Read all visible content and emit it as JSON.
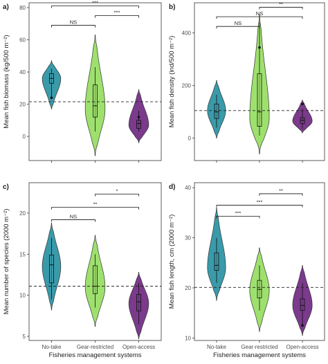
{
  "colors": {
    "no_take": "#3a9aaa",
    "gear_restricted": "#9ee06d",
    "open_access": "#7b3a8c",
    "outline": "#333333",
    "frame": "#333333",
    "reference_line": "#222222"
  },
  "chart_data": [
    {
      "id": "a",
      "type": "violin",
      "panel_label": "a)",
      "xlabel": "",
      "ylabel": "Mean fish biomass (kg/500 m⁻²)",
      "categories": [
        "No-take",
        "Gear-restricted",
        "Open-access"
      ],
      "show_xtick_labels": false,
      "ylim": [
        -15,
        83
      ],
      "yticks": [
        0,
        20,
        40,
        60,
        80
      ],
      "reference_line": 21.5,
      "grid": false,
      "series": [
        {
          "category": "No-take",
          "violin_range": [
            17,
            47
          ],
          "violin_peak": 36,
          "box": [
            33,
            36,
            39
          ],
          "whiskers": [
            24,
            42
          ],
          "outliers": [
            24
          ]
        },
        {
          "category": "Gear-restricted",
          "violin_range": [
            -12,
            63
          ],
          "violin_peak": 17,
          "box": [
            12,
            19,
            32
          ],
          "whiskers": [
            3,
            43
          ],
          "outliers": []
        },
        {
          "category": "Open-access",
          "violin_range": [
            -4,
            29
          ],
          "violin_peak": 7,
          "box": [
            5,
            8,
            10
          ],
          "whiskers": [
            3,
            16
          ],
          "outliers": [
            12
          ]
        }
      ],
      "comparisons": [
        {
          "pair": [
            "No-take",
            "Gear-restricted"
          ],
          "label": "NS",
          "y": 69
        },
        {
          "pair": [
            "Gear-restricted",
            "Open-access"
          ],
          "label": "***",
          "y": 75
        },
        {
          "pair": [
            "No-take",
            "Open-access"
          ],
          "label": "***",
          "y": 81
        }
      ]
    },
    {
      "id": "b",
      "type": "violin",
      "panel_label": "b)",
      "xlabel": "",
      "ylabel": "Mean fish density (ind/500 m⁻²)",
      "categories": [
        "No-take",
        "Gear-restricted",
        "Open-access"
      ],
      "show_xtick_labels": false,
      "ylim": [
        -85,
        515
      ],
      "yticks": [
        0,
        200,
        400
      ],
      "reference_line": 105,
      "grid": false,
      "series": [
        {
          "category": "No-take",
          "violin_range": [
            0,
            220
          ],
          "violin_peak": 105,
          "box": [
            75,
            100,
            130
          ],
          "whiskers": [
            40,
            165
          ],
          "outliers": []
        },
        {
          "category": "Gear-restricted",
          "violin_range": [
            -60,
            470
          ],
          "violin_peak": 75,
          "box": [
            45,
            100,
            245
          ],
          "whiskers": [
            10,
            440
          ],
          "outliers": [
            345
          ]
        },
        {
          "category": "Open-access",
          "violin_range": [
            20,
            145
          ],
          "violin_peak": 65,
          "box": [
            55,
            68,
            78
          ],
          "whiskers": [
            35,
            110
          ],
          "outliers": [
            130
          ]
        }
      ],
      "comparisons": [
        {
          "pair": [
            "No-take",
            "Gear-restricted"
          ],
          "label": "NS",
          "y": 425
        },
        {
          "pair": [
            "No-take",
            "Open-access"
          ],
          "label": "NS",
          "y": 462
        },
        {
          "pair": [
            "Gear-restricted",
            "Open-access"
          ],
          "label": "**",
          "y": 498
        }
      ]
    },
    {
      "id": "c",
      "type": "violin",
      "panel_label": "c)",
      "xlabel": "Fisheries management systems",
      "ylabel": "Mean number of species (2000 m⁻²)",
      "categories": [
        "No-take",
        "Gear-restricted",
        "Open-access"
      ],
      "show_xtick_labels": true,
      "ylim": [
        4.5,
        23.7
      ],
      "yticks": [
        5,
        10,
        15,
        20
      ],
      "reference_line": 11.1,
      "grid": false,
      "series": [
        {
          "category": "No-take",
          "violin_range": [
            8.2,
            18.8
          ],
          "violin_peak": 13.5,
          "box": [
            11.5,
            13.7,
            14.9
          ],
          "whiskers": [
            9.5,
            17.0
          ],
          "outliers": []
        },
        {
          "category": "Gear-restricted",
          "violin_range": [
            6.2,
            17.3
          ],
          "violin_peak": 11.0,
          "box": [
            10.2,
            11.1,
            13.6
          ],
          "whiskers": [
            8.5,
            15.0
          ],
          "outliers": []
        },
        {
          "category": "Open-access",
          "violin_range": [
            4.7,
            12.8
          ],
          "violin_peak": 9.0,
          "box": [
            8.1,
            9.2,
            10.1
          ],
          "whiskers": [
            6.5,
            11.5
          ],
          "outliers": []
        }
      ],
      "comparisons": [
        {
          "pair": [
            "No-take",
            "Gear-restricted"
          ],
          "label": "NS",
          "y": 19.2
        },
        {
          "pair": [
            "No-take",
            "Open-access"
          ],
          "label": "**",
          "y": 20.7
        },
        {
          "pair": [
            "Gear-restricted",
            "Open-access"
          ],
          "label": "*",
          "y": 22.3
        }
      ]
    },
    {
      "id": "d",
      "type": "violin",
      "panel_label": "d)",
      "xlabel": "Fisheries management systems",
      "ylabel": "Mean fish length, cm (2000 m⁻²)",
      "categories": [
        "No-take",
        "Gear-restricted",
        "Open-access"
      ],
      "show_xtick_labels": true,
      "ylim": [
        9.5,
        41
      ],
      "yticks": [
        10,
        20,
        30,
        40
      ],
      "reference_line": 20.1,
      "grid": false,
      "series": [
        {
          "category": "No-take",
          "violin_range": [
            17.5,
            36
          ],
          "violin_peak": 24,
          "box": [
            23.5,
            24.5,
            27
          ],
          "whiskers": [
            21,
            30
          ],
          "outliers": []
        },
        {
          "category": "Gear-restricted",
          "violin_range": [
            11.3,
            28
          ],
          "violin_peak": 19.5,
          "box": [
            18,
            19.7,
            21.5
          ],
          "whiskers": [
            15.5,
            24.5
          ],
          "outliers": []
        },
        {
          "category": "Open-access",
          "violin_range": [
            10.5,
            24.5
          ],
          "violin_peak": 16.5,
          "box": [
            15.5,
            16.5,
            17.8
          ],
          "whiskers": [
            12.5,
            21
          ],
          "outliers": [
            12.5
          ]
        }
      ],
      "comparisons": [
        {
          "pair": [
            "No-take",
            "Gear-restricted"
          ],
          "label": "***",
          "y": 34.3
        },
        {
          "pair": [
            "No-take",
            "Open-access"
          ],
          "label": "***",
          "y": 36.5
        },
        {
          "pair": [
            "Gear-restricted",
            "Open-access"
          ],
          "label": "**",
          "y": 38.8
        }
      ]
    }
  ]
}
